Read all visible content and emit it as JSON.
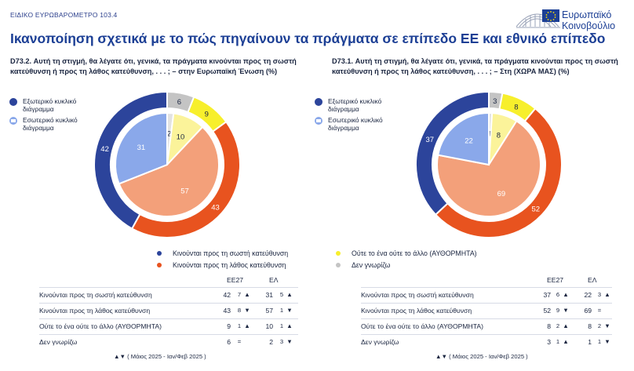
{
  "header": {
    "survey": "ΕΙΔΙΚΟ ΕΥΡΩΒΑΡΟΜΕΤΡΟ 103.4",
    "title": "Ικανοποίηση σχετικά με το πώς πηγαίνουν τα πράγματα σε επίπεδο ΕΕ και εθνικό επίπεδο",
    "logo_line1": "Ευρωπαϊκό",
    "logo_line2": "Κοινοβούλιο"
  },
  "colors": {
    "right": "#2c449b",
    "wrong": "#e8531f",
    "neither": "#f7ef2c",
    "dk": "#c4c4c4",
    "right_inner": "#8aa8ea",
    "wrong_inner": "#f3a07a",
    "neither_inner": "#fbf39a",
    "dk_inner": "#e2e2e2",
    "title": "#1c3f95"
  },
  "ring_legend": {
    "outer": "Εξωτερικό κυκλικό διάγραμμα",
    "inner": "Εσωτερικό κυκλικό διάγραμμα"
  },
  "legend": {
    "right": "Κινούνται προς τη σωστή κατεύθυνση",
    "wrong": "Κινούνται προς τη λάθος κατεύθυνση",
    "neither": "Ούτε το ένα ούτε το άλλο (ΑΥΘΟΡΜΗΤΑ)",
    "dk": "Δεν γνωρίζω"
  },
  "chart_data": [
    {
      "type": "pie",
      "title": "D73.2. Αυτή τη στιγμή, θα λέγατε ότι, γενικά, τα πράγματα κινούνται προς τη σωστή κατεύθυνση ή προς τη λάθος κατεύθυνση, . . . ; – στην Ευρωπαϊκή Ένωση (%)",
      "categories": [
        "Κινούνται προς τη σωστή κατεύθυνση",
        "Κινούνται προς τη λάθος κατεύθυνση",
        "Ούτε το ένα ούτε το άλλο (ΑΥΘΟΡΜΗΤΑ)",
        "Δεν γνωρίζω"
      ],
      "series": [
        {
          "name": "Εξωτερικό κυκλικό διάγραμμα",
          "values": [
            42,
            43,
            9,
            6
          ]
        },
        {
          "name": "Εσωτερικό κυκλικό διάγραμμα",
          "values": [
            31,
            57,
            10,
            2
          ]
        }
      ],
      "table": {
        "headers": [
          "ΕΕ27",
          "ΕΛ"
        ],
        "rows": [
          {
            "label": "Κινούνται προς τη σωστή κατεύθυνση",
            "eu": "42",
            "eu_delta": "7",
            "eu_dir": "▲",
            "el": "31",
            "el_delta": "5",
            "el_dir": "▲"
          },
          {
            "label": "Κινούνται προς τη λάθος κατεύθυνση",
            "eu": "43",
            "eu_delta": "8",
            "eu_dir": "▼",
            "el": "57",
            "el_delta": "1",
            "el_dir": "▼"
          },
          {
            "label": "Ούτε το ένα ούτε το άλλο (ΑΥΘΟΡΜΗΤΑ)",
            "eu": "9",
            "eu_delta": "1",
            "eu_dir": "▲",
            "el": "10",
            "el_delta": "1",
            "el_dir": "▲"
          },
          {
            "label": "Δεν γνωρίζω",
            "eu": "6",
            "eu_delta": "=",
            "eu_dir": "",
            "el": "2",
            "el_delta": "3",
            "el_dir": "▼"
          }
        ],
        "footnote": "▲▼ ( Μάιος 2025 - Ιαν/Φεβ 2025 )"
      }
    },
    {
      "type": "pie",
      "title": "D73.1. Αυτή τη στιγμή, θα λέγατε ότι, γενικά, τα πράγματα κινούνται προς τη σωστή κατεύθυνση ή προς τη λάθος κατεύθυνση, . . . ; – Στη (ΧΩΡΑ ΜΑΣ) (%)",
      "categories": [
        "Κινούνται προς τη σωστή κατεύθυνση",
        "Κινούνται προς τη λάθος κατεύθυνση",
        "Ούτε το ένα ούτε το άλλο (ΑΥΘΟΡΜΗΤΑ)",
        "Δεν γνωρίζω"
      ],
      "series": [
        {
          "name": "Εξωτερικό κυκλικό διάγραμμα",
          "values": [
            37,
            52,
            8,
            3
          ]
        },
        {
          "name": "Εσωτερικό κυκλικό διάγραμμα",
          "values": [
            22,
            69,
            8,
            1
          ]
        }
      ],
      "table": {
        "headers": [
          "ΕΕ27",
          "ΕΛ"
        ],
        "rows": [
          {
            "label": "Κινούνται προς τη σωστή κατεύθυνση",
            "eu": "37",
            "eu_delta": "6",
            "eu_dir": "▲",
            "el": "22",
            "el_delta": "3",
            "el_dir": "▲"
          },
          {
            "label": "Κινούνται προς τη λάθος κατεύθυνση",
            "eu": "52",
            "eu_delta": "9",
            "eu_dir": "▼",
            "el": "69",
            "el_delta": "=",
            "el_dir": ""
          },
          {
            "label": "Ούτε το ένα ούτε το άλλο (ΑΥΘΟΡΜΗΤΑ)",
            "eu": "8",
            "eu_delta": "2",
            "eu_dir": "▲",
            "el": "8",
            "el_delta": "2",
            "el_dir": "▼"
          },
          {
            "label": "Δεν γνωρίζω",
            "eu": "3",
            "eu_delta": "1",
            "eu_dir": "▲",
            "el": "1",
            "el_delta": "1",
            "el_dir": "▼"
          }
        ],
        "footnote": "▲▼ ( Μάιος 2025 - Ιαν/Φεβ 2025 )"
      }
    }
  ]
}
